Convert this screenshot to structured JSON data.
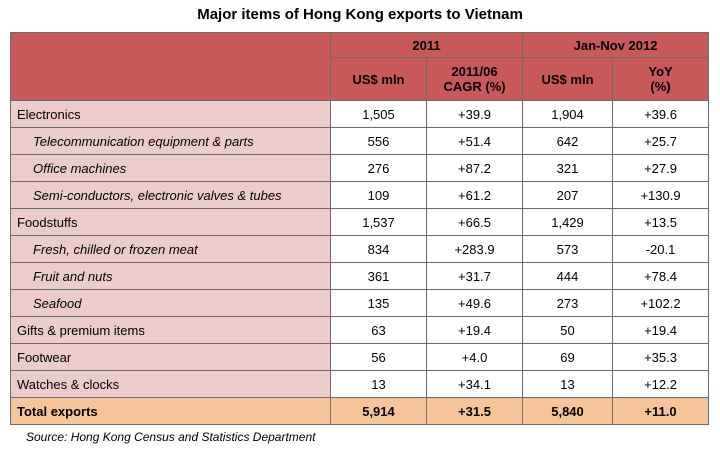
{
  "title": "Major items of Hong Kong exports to Vietnam",
  "header": {
    "group1": "2011",
    "group2": "Jan-Nov 2012",
    "col1": "US$ mln",
    "col2_line1": "2011/06",
    "col2_line2": "CAGR (%)",
    "col3": "US$ mln",
    "col4_line1": "YoY",
    "col4_line2": "(%)"
  },
  "rows": [
    {
      "label": "Electronics",
      "v1": "1,505",
      "v2": "+39.9",
      "v3": "1,904",
      "v4": "+39.6"
    },
    {
      "label": "Telecommunication equipment & parts",
      "v1": "556",
      "v2": "+51.4",
      "v3": "642",
      "v4": "+25.7"
    },
    {
      "label": "Office machines",
      "v1": "276",
      "v2": "+87.2",
      "v3": "321",
      "v4": "+27.9"
    },
    {
      "label": "Semi-conductors, electronic valves & tubes",
      "v1": "109",
      "v2": "+61.2",
      "v3": "207",
      "v4": "+130.9"
    },
    {
      "label": "Foodstuffs",
      "v1": "1,537",
      "v2": "+66.5",
      "v3": "1,429",
      "v4": "+13.5"
    },
    {
      "label": "Fresh, chilled or frozen meat",
      "v1": "834",
      "v2": "+283.9",
      "v3": "573",
      "v4": "-20.1"
    },
    {
      "label": "Fruit and nuts",
      "v1": "361",
      "v2": "+31.7",
      "v3": "444",
      "v4": "+78.4"
    },
    {
      "label": "Seafood",
      "v1": "135",
      "v2": "+49.6",
      "v3": "273",
      "v4": "+102.2"
    },
    {
      "label": "Gifts & premium items",
      "v1": "63",
      "v2": "+19.4",
      "v3": "50",
      "v4": "+19.4"
    },
    {
      "label": "Footwear",
      "v1": "56",
      "v2": "+4.0",
      "v3": "69",
      "v4": "+35.3"
    },
    {
      "label": "Watches & clocks",
      "v1": "13",
      "v2": "+34.1",
      "v3": "13",
      "v4": "+12.2"
    }
  ],
  "total": {
    "label": "Total exports",
    "v1": "5,914",
    "v2": "+31.5",
    "v3": "5,840",
    "v4": "+11.0"
  },
  "source": "Source: Hong Kong Census and Statistics Department",
  "colors": {
    "header_bg": "#c8585a",
    "label_bg": "#eccbcb",
    "total_bg": "#f6c499"
  }
}
